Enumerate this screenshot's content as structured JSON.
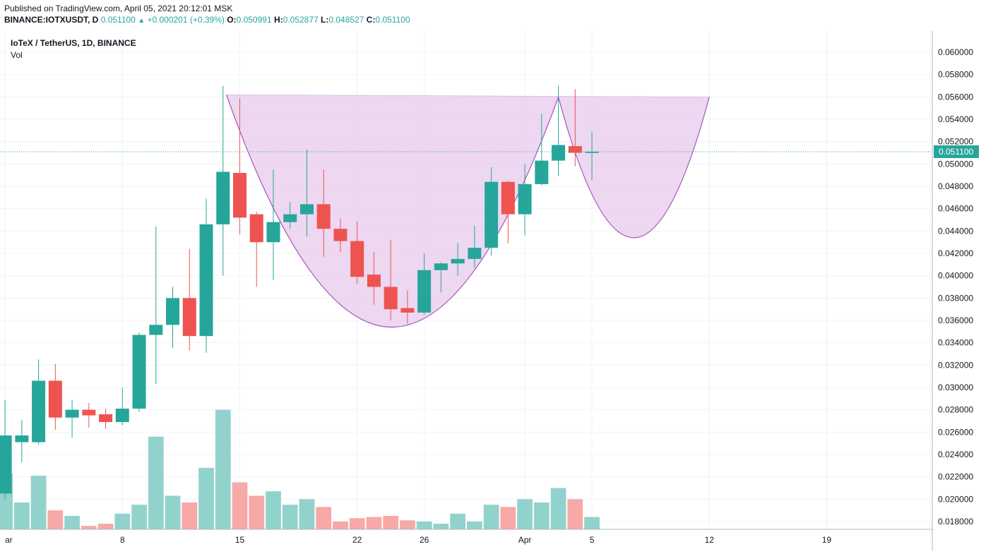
{
  "header": {
    "published": "Published on TradingView.com, April 05, 2021 20:12:01 MSK",
    "symbol_line": "BINANCE:IOTXUSDT, D",
    "last": "0.051100",
    "change": "+0.000201 (+0.39%)",
    "o_label": "O:",
    "o_value": "0.050991",
    "h_label": "H:",
    "h_value": "0.052877",
    "l_label": "L:",
    "l_value": "0.048527",
    "c_label": "C:",
    "c_value": "0.051100"
  },
  "legend": {
    "symbol": "IoTeX / TetherUS, 1D, BINANCE",
    "volume": "Vol"
  },
  "colors": {
    "up": "#26a69a",
    "down": "#ef5350",
    "vol_up": "#92d2cc",
    "vol_down": "#f7a9a7",
    "pattern_fill": "#e9cdee",
    "pattern_line": "#a652b9",
    "grid": "#f0f3fa",
    "axis_text": "#131722"
  },
  "chart_data": {
    "type": "candlestick",
    "y_ticks": [
      "0.060000",
      "0.058000",
      "0.056000",
      "0.054000",
      "0.052000",
      "0.050000",
      "0.048000",
      "0.046000",
      "0.044000",
      "0.042000",
      "0.040000",
      "0.038000",
      "0.036000",
      "0.034000",
      "0.032000",
      "0.030000",
      "0.028000",
      "0.026000",
      "0.024000",
      "0.022000",
      "0.020000",
      "0.018000"
    ],
    "x_ticks": [
      {
        "label": "ar",
        "index": 0
      },
      {
        "label": "8",
        "index": 7
      },
      {
        "label": "15",
        "index": 14
      },
      {
        "label": "22",
        "index": 21
      },
      {
        "label": "26",
        "index": 25
      },
      {
        "label": "Apr",
        "index": 31
      },
      {
        "label": "5",
        "index": 35
      },
      {
        "label": "12",
        "index": 42
      },
      {
        "label": "19",
        "index": 49
      }
    ],
    "ylim": [
      0.0173,
      0.0619
    ],
    "x_range": [
      -0.3,
      55.3
    ],
    "last_price": {
      "value": 0.0511,
      "label": "0.051100"
    },
    "candles": [
      {
        "o": 0.0205,
        "h": 0.0289,
        "l": 0.02,
        "c": 0.0257,
        "v": 0.0223
      },
      {
        "o": 0.0251,
        "h": 0.0271,
        "l": 0.0233,
        "c": 0.0257,
        "v": 0.0197
      },
      {
        "o": 0.0251,
        "h": 0.0325,
        "l": 0.0249,
        "c": 0.0306,
        "v": 0.0221
      },
      {
        "o": 0.0306,
        "h": 0.0321,
        "l": 0.0262,
        "c": 0.0273,
        "v": 0.019
      },
      {
        "o": 0.0273,
        "h": 0.0289,
        "l": 0.0255,
        "c": 0.028,
        "v": 0.0185
      },
      {
        "o": 0.028,
        "h": 0.0286,
        "l": 0.0264,
        "c": 0.0275,
        "v": 0.0176
      },
      {
        "o": 0.0276,
        "h": 0.0281,
        "l": 0.0263,
        "c": 0.0269,
        "v": 0.0178
      },
      {
        "o": 0.0269,
        "h": 0.03,
        "l": 0.0266,
        "c": 0.0281,
        "v": 0.0187
      },
      {
        "o": 0.0281,
        "h": 0.0349,
        "l": 0.0278,
        "c": 0.0347,
        "v": 0.0195
      },
      {
        "o": 0.0347,
        "h": 0.0444,
        "l": 0.0303,
        "c": 0.0356,
        "v": 0.0256
      },
      {
        "o": 0.0356,
        "h": 0.039,
        "l": 0.0335,
        "c": 0.038,
        "v": 0.0203
      },
      {
        "o": 0.038,
        "h": 0.0424,
        "l": 0.0333,
        "c": 0.0346,
        "v": 0.0197
      },
      {
        "o": 0.0346,
        "h": 0.0469,
        "l": 0.0331,
        "c": 0.0446,
        "v": 0.0228
      },
      {
        "o": 0.0446,
        "h": 0.057,
        "l": 0.04,
        "c": 0.0493,
        "v": 0.028
      },
      {
        "o": 0.0492,
        "h": 0.0559,
        "l": 0.0437,
        "c": 0.0452,
        "v": 0.0215
      },
      {
        "o": 0.0455,
        "h": 0.0457,
        "l": 0.039,
        "c": 0.043,
        "v": 0.0203
      },
      {
        "o": 0.043,
        "h": 0.0495,
        "l": 0.0396,
        "c": 0.0448,
        "v": 0.0207
      },
      {
        "o": 0.0448,
        "h": 0.0466,
        "l": 0.0442,
        "c": 0.0455,
        "v": 0.0195
      },
      {
        "o": 0.0455,
        "h": 0.0513,
        "l": 0.0435,
        "c": 0.0464,
        "v": 0.02
      },
      {
        "o": 0.0464,
        "h": 0.0495,
        "l": 0.0417,
        "c": 0.0442,
        "v": 0.0193
      },
      {
        "o": 0.0442,
        "h": 0.0451,
        "l": 0.0421,
        "c": 0.0431,
        "v": 0.018
      },
      {
        "o": 0.0431,
        "h": 0.0449,
        "l": 0.0393,
        "c": 0.0399,
        "v": 0.0183
      },
      {
        "o": 0.0401,
        "h": 0.0421,
        "l": 0.0374,
        "c": 0.039,
        "v": 0.0184
      },
      {
        "o": 0.039,
        "h": 0.0432,
        "l": 0.036,
        "c": 0.037,
        "v": 0.0185
      },
      {
        "o": 0.0371,
        "h": 0.0387,
        "l": 0.0357,
        "c": 0.0367,
        "v": 0.0181
      },
      {
        "o": 0.0367,
        "h": 0.042,
        "l": 0.0365,
        "c": 0.0405,
        "v": 0.018
      },
      {
        "o": 0.0405,
        "h": 0.0412,
        "l": 0.0385,
        "c": 0.0411,
        "v": 0.0178
      },
      {
        "o": 0.0411,
        "h": 0.0429,
        "l": 0.04,
        "c": 0.0415,
        "v": 0.0187
      },
      {
        "o": 0.0415,
        "h": 0.0445,
        "l": 0.0407,
        "c": 0.0425,
        "v": 0.018
      },
      {
        "o": 0.0425,
        "h": 0.0497,
        "l": 0.0418,
        "c": 0.0484,
        "v": 0.0195
      },
      {
        "o": 0.0484,
        "h": 0.0485,
        "l": 0.0429,
        "c": 0.0455,
        "v": 0.0193
      },
      {
        "o": 0.0455,
        "h": 0.05,
        "l": 0.0436,
        "c": 0.0482,
        "v": 0.02
      },
      {
        "o": 0.0482,
        "h": 0.0545,
        "l": 0.0481,
        "c": 0.0503,
        "v": 0.0197
      },
      {
        "o": 0.0503,
        "h": 0.057,
        "l": 0.0489,
        "c": 0.0517,
        "v": 0.021
      },
      {
        "o": 0.0516,
        "h": 0.0567,
        "l": 0.0498,
        "c": 0.051,
        "v": 0.02
      },
      {
        "o": 0.05099,
        "h": 0.05288,
        "l": 0.04853,
        "c": 0.0511,
        "v": 0.0184
      }
    ],
    "pattern": {
      "name": "cup-and-handle",
      "top_line": [
        {
          "x": 13.2,
          "y": 0.0562
        },
        {
          "x": 42.0,
          "y": 0.056
        }
      ],
      "cup": [
        {
          "x": 13.2,
          "y": 0.0562
        },
        {
          "x": 23.0,
          "y": 0.0354
        },
        {
          "x": 33.0,
          "y": 0.056
        }
      ],
      "handle": [
        {
          "x": 33.0,
          "y": 0.056
        },
        {
          "x": 37.5,
          "y": 0.0434
        },
        {
          "x": 42.0,
          "y": 0.056
        }
      ]
    }
  }
}
